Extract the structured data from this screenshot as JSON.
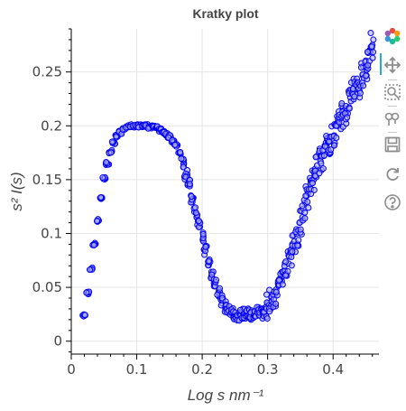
{
  "chart_data": {
    "type": "scatter",
    "title": "Kratky plot",
    "xlabel": "Log s nm⁻¹",
    "ylabel": "s² I(s)",
    "xlim": [
      0,
      0.47
    ],
    "ylim": [
      -0.012,
      0.29
    ],
    "x_ticks": [
      0,
      0.1,
      0.2,
      0.3,
      0.4
    ],
    "x_tick_labels": [
      "0",
      "0.1",
      "0.2",
      "0.3",
      "0.4"
    ],
    "y_ticks": [
      0,
      0.05,
      0.1,
      0.15,
      0.2,
      0.25
    ],
    "y_tick_labels": [
      "0",
      "0.05",
      "0.1",
      "0.15",
      "0.2",
      "0.25"
    ],
    "grid": true,
    "marker": {
      "shape": "circle",
      "fill": "#aaaaff",
      "stroke": "#0000ee"
    },
    "series": [
      {
        "x": [
          0.02,
          0.025,
          0.03,
          0.035,
          0.04,
          0.045,
          0.05,
          0.055,
          0.06,
          0.065,
          0.07,
          0.075,
          0.08,
          0.085,
          0.09,
          0.095,
          0.1,
          0.105,
          0.11,
          0.115,
          0.12,
          0.125,
          0.13,
          0.135,
          0.14,
          0.145,
          0.15,
          0.155,
          0.16,
          0.165,
          0.17,
          0.175,
          0.18,
          0.185,
          0.19,
          0.195,
          0.2,
          0.205,
          0.21,
          0.215,
          0.22,
          0.225,
          0.23,
          0.235,
          0.24,
          0.245,
          0.25,
          0.255,
          0.26,
          0.265,
          0.27,
          0.275,
          0.28,
          0.285,
          0.29,
          0.295,
          0.3,
          0.305,
          0.31,
          0.315,
          0.32,
          0.325,
          0.33,
          0.335,
          0.34,
          0.345,
          0.35,
          0.355,
          0.36,
          0.365,
          0.37,
          0.375,
          0.38,
          0.385,
          0.39,
          0.395,
          0.4,
          0.405,
          0.41,
          0.415,
          0.42,
          0.425,
          0.43,
          0.435,
          0.44,
          0.445,
          0.45,
          0.455,
          0.46
        ],
        "y": [
          0.024,
          0.045,
          0.067,
          0.09,
          0.112,
          0.133,
          0.151,
          0.165,
          0.176,
          0.184,
          0.19,
          0.194,
          0.197,
          0.199,
          0.2,
          0.2,
          0.2,
          0.2,
          0.2,
          0.2,
          0.199,
          0.199,
          0.198,
          0.196,
          0.194,
          0.192,
          0.19,
          0.186,
          0.182,
          0.175,
          0.165,
          0.155,
          0.145,
          0.133,
          0.12,
          0.108,
          0.096,
          0.085,
          0.073,
          0.063,
          0.054,
          0.045,
          0.038,
          0.032,
          0.029,
          0.026,
          0.024,
          0.024,
          0.025,
          0.025,
          0.027,
          0.025,
          0.024,
          0.027,
          0.026,
          0.028,
          0.032,
          0.037,
          0.043,
          0.048,
          0.056,
          0.064,
          0.072,
          0.082,
          0.09,
          0.1,
          0.11,
          0.123,
          0.135,
          0.141,
          0.15,
          0.16,
          0.167,
          0.172,
          0.18,
          0.185,
          0.19,
          0.2,
          0.206,
          0.211,
          0.213,
          0.223,
          0.232,
          0.236,
          0.238,
          0.247,
          0.252,
          0.26,
          0.275
        ]
      }
    ],
    "toolbar_icons": [
      "bokeh-logo-icon",
      "pan-icon",
      "box-zoom-icon",
      "wheel-zoom-icon",
      "save-icon",
      "reset-icon",
      "help-icon"
    ]
  }
}
